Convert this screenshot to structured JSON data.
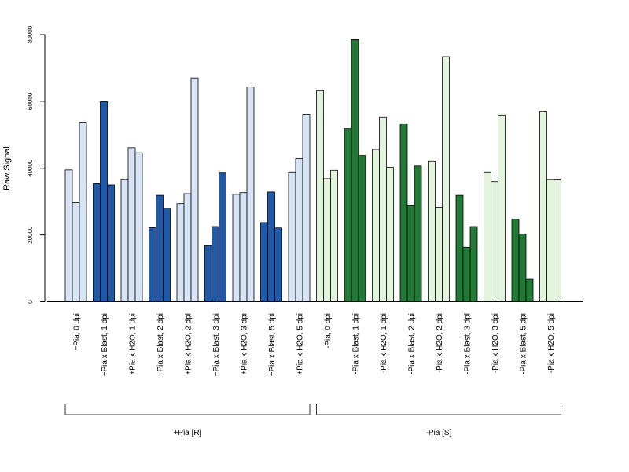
{
  "chart_data": {
    "type": "bar",
    "ylabel": "Raw Signal",
    "ylim": [
      0,
      80000
    ],
    "y_ticks": [
      "0",
      "20000",
      "40000",
      "60000",
      "80000"
    ],
    "grid": false,
    "categories": [
      "+Pia, 0 dpi",
      "+Pia x Blast, 1 dpi",
      "+Pia x H2O, 1 dpi",
      "+Pia x Blast, 2 dpi",
      "+Pia x H2O, 2 dpi",
      "+Pia x Blast, 3 dpi",
      "+Pia x H2O, 3 dpi",
      "+Pia x Blast, 5 dpi",
      "+Pia x H2O, 5 dpi",
      "-Pia, 0 dpi",
      "-Pia x Blast, 1 dpi",
      "-Pia x H2O, 1 dpi",
      "-Pia x Blast, 2 dpi",
      "-Pia x H2O, 2 dpi",
      "-Pia x Blast, 3 dpi",
      "-Pia x H2O, 3 dpi",
      "-Pia x Blast, 5 dpi",
      "-Pia x H2O, 5 dpi"
    ],
    "replicate_values": [
      [
        39500,
        29700,
        53700
      ],
      [
        35400,
        59900,
        35000
      ],
      [
        36600,
        46100,
        44600
      ],
      [
        22200,
        31900,
        28000
      ],
      [
        29400,
        32400,
        67000
      ],
      [
        16800,
        22500,
        38600
      ],
      [
        32200,
        32700,
        64300
      ],
      [
        23700,
        32900,
        22100
      ],
      [
        38700,
        42900,
        56100
      ],
      [
        63200,
        36900,
        39400
      ],
      [
        51800,
        78500,
        43800
      ],
      [
        45600,
        55200,
        40300
      ],
      [
        53300,
        28800,
        40700
      ],
      [
        42000,
        28300,
        73400
      ],
      [
        31900,
        16300,
        22500
      ],
      [
        38700,
        36000,
        55900
      ],
      [
        24700,
        20300,
        6700
      ],
      [
        57000,
        36600,
        36500
      ]
    ],
    "bar_colors": [
      "#d6e4f5",
      "#1f5aa8",
      "#d6e4f5",
      "#1f5aa8",
      "#d6e4f5",
      "#1f5aa8",
      "#d6e4f5",
      "#1f5aa8",
      "#d6e4f5",
      "#e2f4dc",
      "#227a36",
      "#e2f4dc",
      "#227a36",
      "#e2f4dc",
      "#227a36",
      "#e2f4dc",
      "#227a36",
      "#e2f4dc"
    ],
    "groups": [
      {
        "label": "+Pia [R]",
        "first": 0,
        "last": 8
      },
      {
        "label": "-Pia [S]",
        "first": 9,
        "last": 17
      }
    ]
  }
}
